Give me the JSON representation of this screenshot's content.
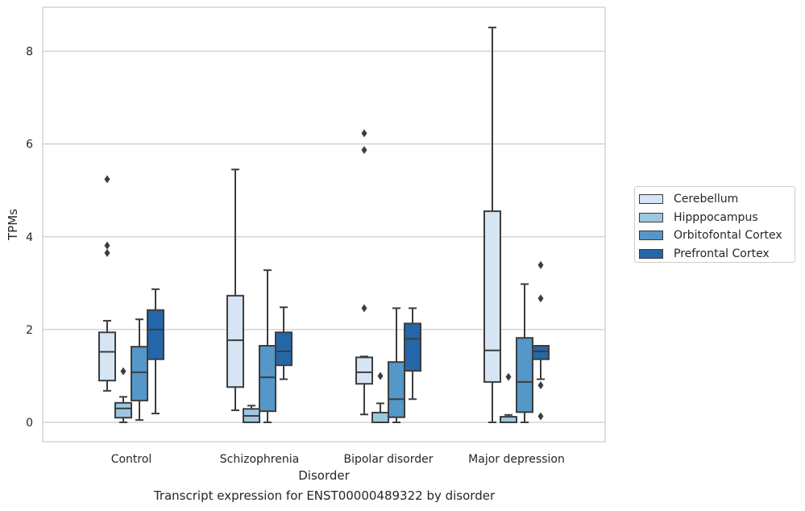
{
  "chart_data": {
    "type": "boxplot",
    "caption": "Transcript expression for ENST00000489322 by disorder",
    "xlabel": "Disorder",
    "ylabel": "TPMs",
    "categories": [
      "Control",
      "Schizophrenia",
      "Bipolar disorder",
      "Major depression"
    ],
    "yticks": [
      0,
      2,
      4,
      6,
      8
    ],
    "ylim": [
      -0.42,
      8.97
    ],
    "grid": "horizontal",
    "legend_position": "right",
    "series": [
      {
        "name": "Cerebellum",
        "color": "#d6e5f3",
        "boxes": [
          {
            "whisker_low": 0.68,
            "q1": 0.9,
            "median": 1.52,
            "q3": 1.94,
            "whisker_high": 2.19,
            "outliers": [
              5.24,
              3.81,
              3.65
            ]
          },
          {
            "whisker_low": 0.26,
            "q1": 0.76,
            "median": 1.77,
            "q3": 2.73,
            "whisker_high": 5.45,
            "outliers": []
          },
          {
            "whisker_low": 0.17,
            "q1": 0.83,
            "median": 1.08,
            "q3": 1.4,
            "whisker_high": 1.42,
            "outliers": [
              6.23,
              5.87,
              2.46
            ]
          },
          {
            "whisker_low": 0.0,
            "q1": 0.87,
            "median": 1.55,
            "q3": 4.55,
            "whisker_high": 8.51,
            "outliers": []
          }
        ]
      },
      {
        "name": "Hipppocampus",
        "color": "#9dc7e0",
        "boxes": [
          {
            "whisker_low": 0.0,
            "q1": 0.1,
            "median": 0.3,
            "q3": 0.42,
            "whisker_high": 0.55,
            "outliers": [
              1.1
            ]
          },
          {
            "whisker_low": 0.0,
            "q1": 0.0,
            "median": 0.14,
            "q3": 0.29,
            "whisker_high": 0.36,
            "outliers": []
          },
          {
            "whisker_low": 0.0,
            "q1": 0.0,
            "median": 0.0,
            "q3": 0.21,
            "whisker_high": 0.41,
            "outliers": [
              1.0
            ]
          },
          {
            "whisker_low": 0.0,
            "q1": 0.0,
            "median": 0.0,
            "q3": 0.12,
            "whisker_high": 0.16,
            "outliers": [
              0.98
            ]
          }
        ]
      },
      {
        "name": "Orbitofontal Cortex",
        "color": "#5497c8",
        "boxes": [
          {
            "whisker_low": 0.05,
            "q1": 0.47,
            "median": 1.08,
            "q3": 1.63,
            "whisker_high": 2.22,
            "outliers": []
          },
          {
            "whisker_low": 0.0,
            "q1": 0.24,
            "median": 0.97,
            "q3": 1.65,
            "whisker_high": 3.28,
            "outliers": []
          },
          {
            "whisker_low": 0.0,
            "q1": 0.11,
            "median": 0.5,
            "q3": 1.3,
            "whisker_high": 2.46,
            "outliers": []
          },
          {
            "whisker_low": 0.0,
            "q1": 0.22,
            "median": 0.87,
            "q3": 1.82,
            "whisker_high": 2.98,
            "outliers": []
          }
        ]
      },
      {
        "name": "Prefrontal Cortex",
        "color": "#2467a9",
        "boxes": [
          {
            "whisker_low": 0.19,
            "q1": 1.36,
            "median": 2.0,
            "q3": 2.42,
            "whisker_high": 2.87,
            "outliers": []
          },
          {
            "whisker_low": 0.93,
            "q1": 1.23,
            "median": 1.53,
            "q3": 1.94,
            "whisker_high": 2.48,
            "outliers": []
          },
          {
            "whisker_low": 0.5,
            "q1": 1.11,
            "median": 1.8,
            "q3": 2.13,
            "whisker_high": 2.46,
            "outliers": []
          },
          {
            "whisker_low": 0.93,
            "q1": 1.36,
            "median": 1.53,
            "q3": 1.65,
            "whisker_high": 1.65,
            "outliers": [
              3.39,
              2.67,
              0.8,
              0.13
            ]
          }
        ]
      }
    ]
  }
}
